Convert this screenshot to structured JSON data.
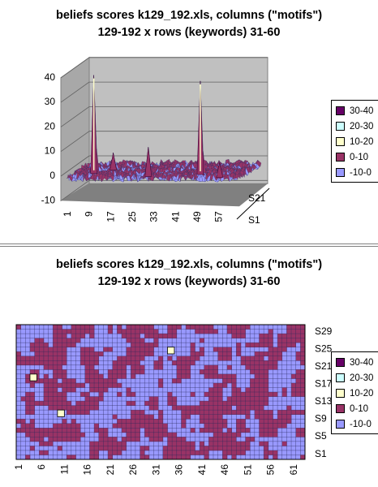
{
  "chart_data": [
    {
      "type": "surface-3d",
      "title_line1": "beliefs scores k129_192.xls, columns (\"motifs\")",
      "title_line2": "129-192 x rows (keywords) 31-60",
      "z_ticks": [
        "40",
        "30",
        "20",
        "10",
        "0",
        "-10"
      ],
      "zlim": [
        -10,
        40
      ],
      "x_ticks": [
        "1",
        "9",
        "17",
        "25",
        "33",
        "41",
        "49",
        "57"
      ],
      "y_ticks": [
        "S21",
        "S1"
      ],
      "legend": [
        "30-40",
        "20-30",
        "10-20",
        "0-10",
        "-10-0"
      ],
      "legend_colors": [
        "#660066",
        "#ccffff",
        "#ffffcc",
        "#993366",
        "#9999ff"
      ],
      "peaks": [
        {
          "col": 7,
          "row": 10,
          "value": 40
        },
        {
          "col": 47,
          "row": 8,
          "value": 38
        },
        {
          "col": 29,
          "row": 4,
          "value": 12
        },
        {
          "col": 12,
          "row": 17,
          "value": 7
        },
        {
          "col": 56,
          "row": 2,
          "value": 6
        }
      ]
    },
    {
      "type": "contour",
      "title_line1": "beliefs scores k129_192.xls, columns (\"motifs\")",
      "title_line2": "129-192 x rows (keywords) 31-60",
      "x_ticks": [
        "1",
        "6",
        "11",
        "16",
        "21",
        "26",
        "31",
        "36",
        "41",
        "46",
        "51",
        "56",
        "61"
      ],
      "y_ticks": [
        "S29",
        "S25",
        "S21",
        "S17",
        "S13",
        "S9",
        "S5",
        "S1"
      ],
      "legend": [
        "30-40",
        "20-30",
        "10-20",
        "0-10",
        "-10-0"
      ],
      "legend_colors": [
        "#660066",
        "#ccffff",
        "#ffffcc",
        "#993366",
        "#9999ff"
      ]
    }
  ]
}
